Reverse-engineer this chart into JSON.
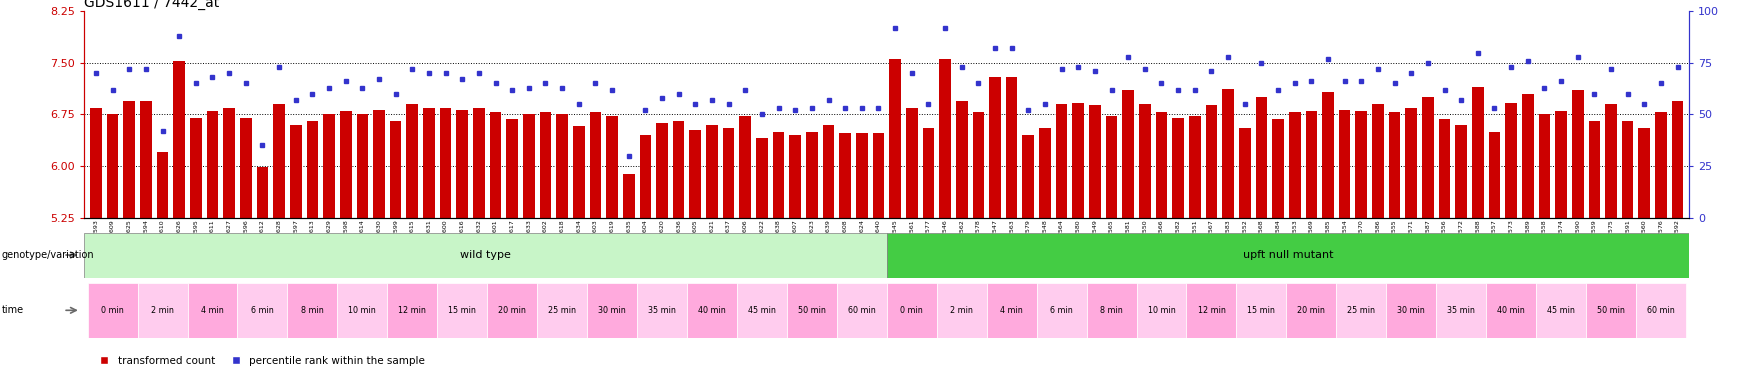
{
  "title": "GDS1611 / 7442_at",
  "ylim_left": [
    5.25,
    8.25
  ],
  "ylim_right": [
    0,
    100
  ],
  "yticks_left": [
    5.25,
    6.0,
    6.75,
    7.5,
    8.25
  ],
  "yticks_right": [
    0,
    25,
    50,
    75,
    100
  ],
  "bar_color": "#cc0000",
  "dot_color": "#3333cc",
  "samples": [
    "GSM67593",
    "GSM67609",
    "GSM67625",
    "GSM67594",
    "GSM67610",
    "GSM67626",
    "GSM67595",
    "GSM67611",
    "GSM67627",
    "GSM67596",
    "GSM67612",
    "GSM67628",
    "GSM67597",
    "GSM67613",
    "GSM67629",
    "GSM67598",
    "GSM67614",
    "GSM67630",
    "GSM67599",
    "GSM67615",
    "GSM67631",
    "GSM67600",
    "GSM67616",
    "GSM67632",
    "GSM67601",
    "GSM67617",
    "GSM67633",
    "GSM67602",
    "GSM67618",
    "GSM67634",
    "GSM67603",
    "GSM67619",
    "GSM67635",
    "GSM67604",
    "GSM67620",
    "GSM67636",
    "GSM67605",
    "GSM67621",
    "GSM67637",
    "GSM67606",
    "GSM67622",
    "GSM67638",
    "GSM67607",
    "GSM67623",
    "GSM67639",
    "GSM67608",
    "GSM67624",
    "GSM67640",
    "GSM67545",
    "GSM67561",
    "GSM67577",
    "GSM67546",
    "GSM67562",
    "GSM67578",
    "GSM67547",
    "GSM67563",
    "GSM67579",
    "GSM67548",
    "GSM67564",
    "GSM67580",
    "GSM67549",
    "GSM67565",
    "GSM67581",
    "GSM67550",
    "GSM67566",
    "GSM67582",
    "GSM67551",
    "GSM67567",
    "GSM67583",
    "GSM67552",
    "GSM67568",
    "GSM67584",
    "GSM67553",
    "GSM67569",
    "GSM67585",
    "GSM67554",
    "GSM67570",
    "GSM67586",
    "GSM67555",
    "GSM67571",
    "GSM67587",
    "GSM67556",
    "GSM67572",
    "GSM67588",
    "GSM67557",
    "GSM67573",
    "GSM67589",
    "GSM67558",
    "GSM67574",
    "GSM67590",
    "GSM67559",
    "GSM67575",
    "GSM67591",
    "GSM67560",
    "GSM67576",
    "GSM67592"
  ],
  "bar_heights": [
    6.85,
    6.75,
    6.95,
    6.95,
    6.2,
    7.52,
    6.7,
    6.8,
    6.85,
    6.7,
    5.98,
    6.9,
    6.6,
    6.65,
    6.75,
    6.8,
    6.75,
    6.82,
    6.65,
    6.9,
    6.85,
    6.85,
    6.82,
    6.85,
    6.78,
    6.68,
    6.75,
    6.78,
    6.75,
    6.58,
    6.78,
    6.72,
    5.88,
    6.45,
    6.62,
    6.65,
    6.52,
    6.6,
    6.55,
    6.72,
    6.4,
    6.5,
    6.45,
    6.5,
    6.6,
    6.48,
    6.48,
    6.48,
    7.55,
    6.85,
    6.55,
    7.55,
    6.95,
    6.78,
    7.3,
    7.3,
    6.45,
    6.55,
    6.9,
    6.92,
    6.88,
    6.72,
    7.1,
    6.9,
    6.78,
    6.7,
    6.72,
    6.88,
    7.12,
    6.55,
    7.0,
    6.68,
    6.78,
    6.8,
    7.08,
    6.82,
    6.8,
    6.9,
    6.78,
    6.85,
    7.0,
    6.68,
    6.6,
    7.15,
    6.5,
    6.92,
    7.05,
    6.75,
    6.8,
    7.1,
    6.65,
    6.9,
    6.65,
    6.55,
    6.78,
    6.95
  ],
  "dot_values": [
    70,
    62,
    72,
    72,
    42,
    88,
    65,
    68,
    70,
    65,
    35,
    73,
    57,
    60,
    63,
    66,
    63,
    67,
    60,
    72,
    70,
    70,
    67,
    70,
    65,
    62,
    63,
    65,
    63,
    55,
    65,
    62,
    30,
    52,
    58,
    60,
    55,
    57,
    55,
    62,
    50,
    53,
    52,
    53,
    57,
    53,
    53,
    53,
    92,
    70,
    55,
    92,
    73,
    65,
    82,
    82,
    52,
    55,
    72,
    73,
    71,
    62,
    78,
    72,
    65,
    62,
    62,
    71,
    78,
    55,
    75,
    62,
    65,
    66,
    77,
    66,
    66,
    72,
    65,
    70,
    75,
    62,
    57,
    80,
    53,
    73,
    76,
    63,
    66,
    78,
    60,
    72,
    60,
    55,
    65,
    73
  ],
  "wt_color_light": "#c8f5c8",
  "wt_color": "#90ee90",
  "mut_color": "#44cc44",
  "time_color1": "#ffaadd",
  "time_color2": "#ffccee",
  "time_labels": [
    "0 min",
    "2 min",
    "4 min",
    "6 min",
    "8 min",
    "10 min",
    "12 min",
    "15 min",
    "20 min",
    "25 min",
    "30 min",
    "35 min",
    "40 min",
    "45 min",
    "50 min",
    "60 min"
  ],
  "samples_per_time": 3,
  "n_wt": 48,
  "n_mut": 48,
  "background_color": "#ffffff",
  "left_label_color": "#cc0000",
  "right_label_color": "#3333cc",
  "legend_items": [
    "transformed count",
    "percentile rank within the sample"
  ],
  "grid_lines": [
    6.0,
    6.75,
    7.5
  ],
  "label_text_left": "genotype/variation",
  "label_text_time": "time"
}
